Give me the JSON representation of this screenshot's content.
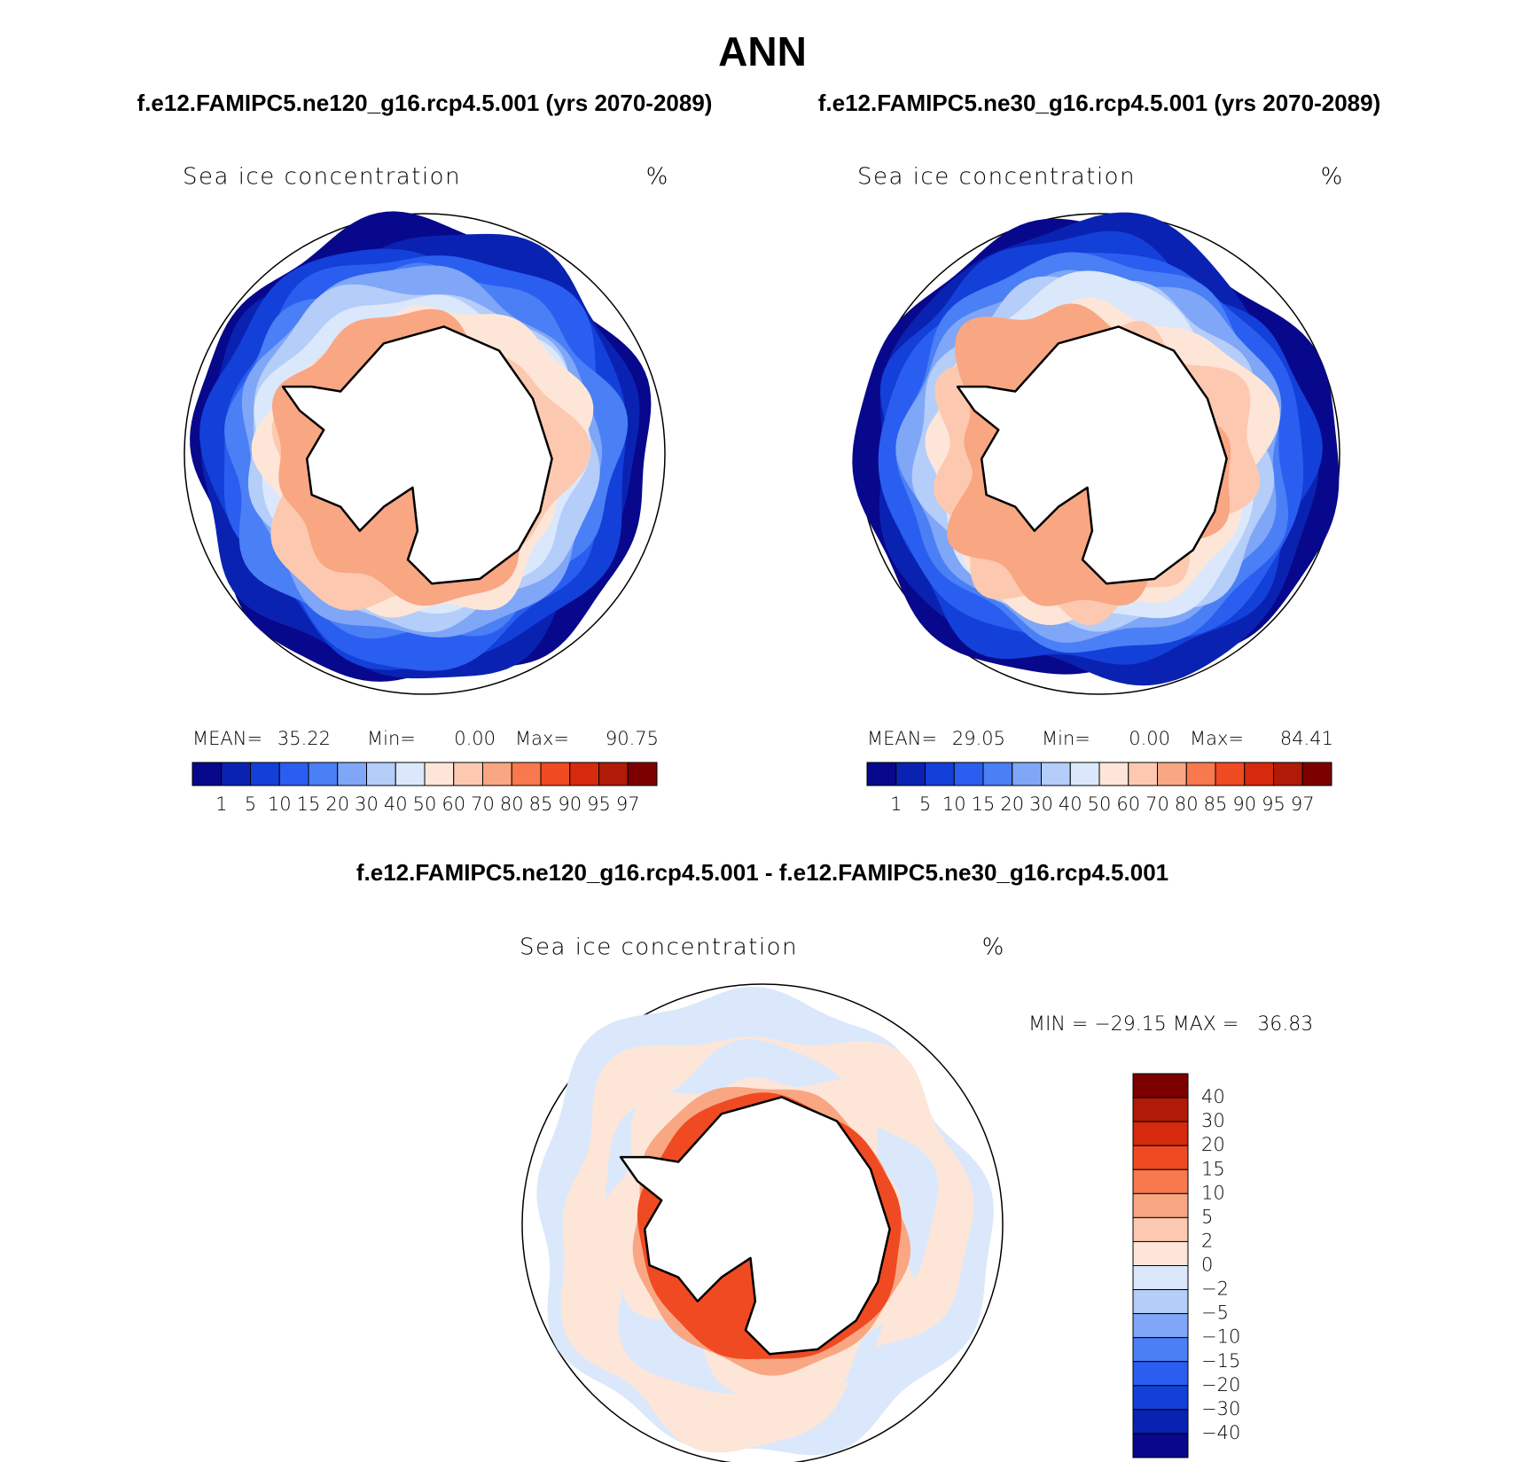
{
  "header": {
    "title": "ANN",
    "left_case": "f.e12.FAMIPC5.ne120_g16.rcp4.5.001 (yrs 2070-2089)",
    "right_case": "f.e12.FAMIPC5.ne30_g16.rcp4.5.001 (yrs 2070-2089)"
  },
  "panels": [
    {
      "variable": "Sea ice concentration",
      "units": "%",
      "stats": [
        "MEAN=",
        "35.22",
        "Min=",
        "0.00",
        "Max=",
        "90.75"
      ]
    },
    {
      "variable": "Sea ice concentration",
      "units": "%",
      "stats": [
        "MEAN=",
        "29.05",
        "Min=",
        "0.00",
        "Max=",
        "84.41"
      ]
    }
  ],
  "colorbar": {
    "labels": [
      "1",
      "5",
      "10",
      "15",
      "20",
      "30",
      "40",
      "50",
      "60",
      "70",
      "80",
      "85",
      "90",
      "95",
      "97"
    ],
    "colors": [
      "#08088c",
      "#0a22b2",
      "#1340d8",
      "#2a5ef0",
      "#4a7ff5",
      "#7fa6f7",
      "#b4cdf9",
      "#dbe8fb",
      "#fde6d8",
      "#fcc9b0",
      "#f9a683",
      "#f7794d",
      "#f04a22",
      "#d52a0d",
      "#b01a06",
      "#7d0000"
    ]
  },
  "difference": {
    "title": "f.e12.FAMIPC5.ne120_g16.rcp4.5.001 - f.e12.FAMIPC5.ne30_g16.rcp4.5.001",
    "variable": "Sea ice concentration",
    "units": "%",
    "stats": "MIN = −29.15 MAX =   36.83",
    "colorbar": {
      "labels": [
        "40",
        "30",
        "20",
        "15",
        "10",
        "5",
        "2",
        "0",
        "−2",
        "−5",
        "−10",
        "−15",
        "−20",
        "−30",
        "−40"
      ],
      "colors": [
        "#7d0000",
        "#b01a06",
        "#d52a0d",
        "#f04a22",
        "#f7794d",
        "#f9a683",
        "#fcc9b0",
        "#fde6d8",
        "#dbe8fb",
        "#b4cdf9",
        "#7fa6f7",
        "#4a7ff5",
        "#2a5ef0",
        "#1340d8",
        "#0a22b2",
        "#08088c"
      ]
    }
  }
}
